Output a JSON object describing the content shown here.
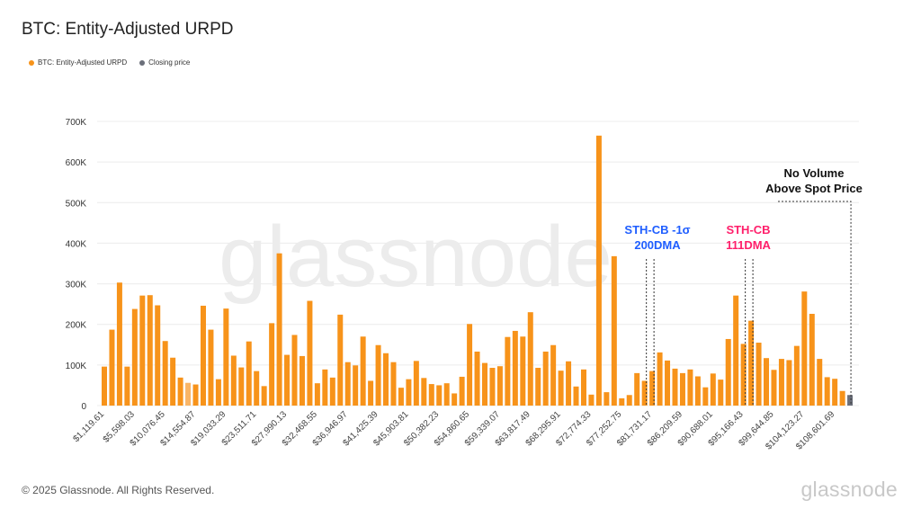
{
  "header": {
    "title": "BTC: Entity-Adjusted URPD"
  },
  "legend": [
    {
      "label": "BTC: Entity-Adjusted URPD",
      "color": "#f7931a"
    },
    {
      "label": "Closing price",
      "color": "#6b6f7a"
    }
  ],
  "footer": {
    "copyright": "© 2025 Glassnode. All Rights Reserved.",
    "logo": "glassnode"
  },
  "watermark": "glassnode",
  "chart_data": {
    "type": "bar",
    "title": "BTC: Entity-Adjusted URPD",
    "xlabel": "",
    "ylabel": "",
    "ylim": [
      0,
      700000
    ],
    "yticks": [
      0,
      100000,
      200000,
      300000,
      400000,
      500000,
      600000,
      700000
    ],
    "ytick_labels": [
      "0",
      "100K",
      "200K",
      "300K",
      "400K",
      "500K",
      "600K",
      "700K"
    ],
    "grid": true,
    "bin_width": 1119.61,
    "xtick_labels": [
      "$1,119.61",
      "$5,598.03",
      "$10,076.45",
      "$14,554.87",
      "$19,033.29",
      "$23,511.71",
      "$27,990.13",
      "$32,468.55",
      "$36,946.97",
      "$41,425.39",
      "$45,903.81",
      "$50,382.23",
      "$54,860.65",
      "$59,339.07",
      "$63,817.49",
      "$68,295.91",
      "$72,774.33",
      "$77,252.75",
      "$81,731.17",
      "$86,209.59",
      "$90,688.01",
      "$95,166.43",
      "$99,644.85",
      "$104,123.27",
      "$108,601.69"
    ],
    "series": [
      {
        "name": "BTC: Entity-Adjusted URPD",
        "color": "#f7931a",
        "values": [
          96000,
          187000,
          303000,
          96000,
          238000,
          271000,
          272000,
          247000,
          159000,
          118000,
          69000,
          56000,
          52000,
          246000,
          187000,
          65000,
          239000,
          123000,
          94000,
          158000,
          85000,
          48000,
          203000,
          375000,
          125000,
          174000,
          122000,
          258000,
          55000,
          89000,
          69000,
          224000,
          107000,
          99000,
          170000,
          61000,
          149000,
          129000,
          107000,
          44000,
          65000,
          110000,
          68000,
          53000,
          50000,
          55000,
          30000,
          71000,
          201000,
          133000,
          105000,
          93000,
          97000,
          169000,
          184000,
          170000,
          230000,
          93000,
          133000,
          149000,
          86000,
          109000,
          47000,
          89000,
          27000,
          665000,
          33000,
          368000,
          18000,
          26000,
          80000,
          61000,
          85000,
          131000,
          111000,
          91000,
          80000,
          89000,
          72000,
          45000,
          79000,
          64000,
          164000,
          271000,
          152000,
          209000,
          155000,
          117000,
          88000,
          115000,
          112000,
          147000,
          281000,
          226000,
          115000,
          70000,
          66000,
          36000
        ]
      },
      {
        "name": "Closing price",
        "color": "#6b6f7a",
        "values_at_bin": {
          "bin": 99,
          "value": 26000
        }
      }
    ],
    "annotations": [
      {
        "text": [
          "STH-CB -1σ",
          "200DMA"
        ],
        "color": "#1f5eff",
        "bins": [
          72,
          73
        ]
      },
      {
        "text": [
          "STH-CB",
          "111DMA"
        ],
        "color": "#ff1f6b",
        "bins": [
          85,
          86
        ]
      },
      {
        "text": [
          "No Volume",
          "Above Spot Price"
        ],
        "color": "#111111",
        "bins": [
          99
        ]
      }
    ]
  }
}
